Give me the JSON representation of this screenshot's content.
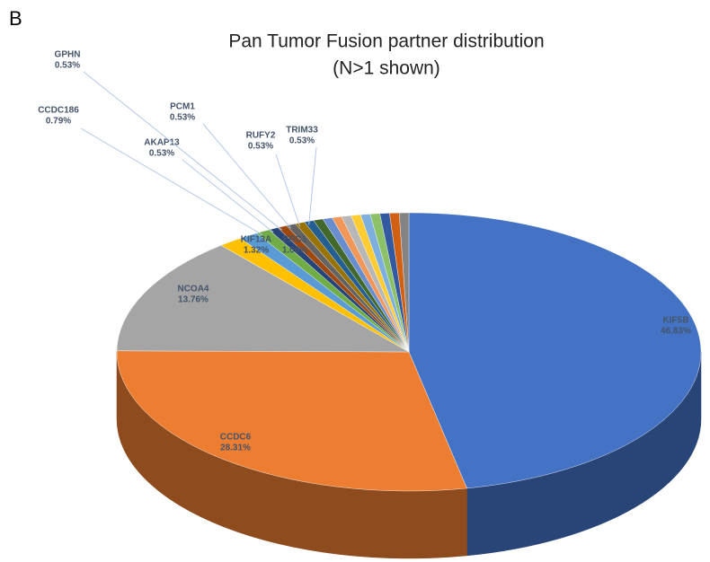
{
  "chart_data": {
    "type": "pie3d",
    "panel_label": "B",
    "title": "Pan Tumor Fusion partner distribution",
    "subtitle": "(N>1 shown)",
    "categories": [
      "KIF5B",
      "CCDC6",
      "NCOA4",
      "KIF13A",
      "ERC1",
      "CCDC186",
      "AKAP13",
      "GPHN",
      "PCM1",
      "RUFY2",
      "TRIM33",
      null,
      null,
      null,
      null,
      null,
      null,
      null,
      null,
      null,
      null
    ],
    "values": [
      46.83,
      28.31,
      13.76,
      1.32,
      1.06,
      0.79,
      0.53,
      0.53,
      0.53,
      0.53,
      0.53,
      0.53,
      0.53,
      0.53,
      0.53,
      0.53,
      0.53,
      0.53,
      0.53,
      0.53,
      0.53
    ],
    "value_labels": [
      "46.83%",
      "28.31%",
      "13.76%",
      "1.32%",
      "1.06%",
      "0.79%",
      "0.53%",
      "0.53%",
      "0.53%",
      "0.53%",
      "0.53%",
      null,
      null,
      null,
      null,
      null,
      null,
      null,
      null,
      null,
      null
    ],
    "colors": [
      "#4472c4",
      "#ed7d31",
      "#a5a5a5",
      "#ffc000",
      "#5b9bd5",
      "#70ad47",
      "#264478",
      "#9e480e",
      "#636363",
      "#997300",
      "#255e91",
      "#43682b",
      "#698ed0",
      "#f1975a",
      "#b7b7b7",
      "#ffcd33",
      "#7cafdd",
      "#8cc168",
      "#335aa1",
      "#d26012",
      "#848484"
    ]
  }
}
